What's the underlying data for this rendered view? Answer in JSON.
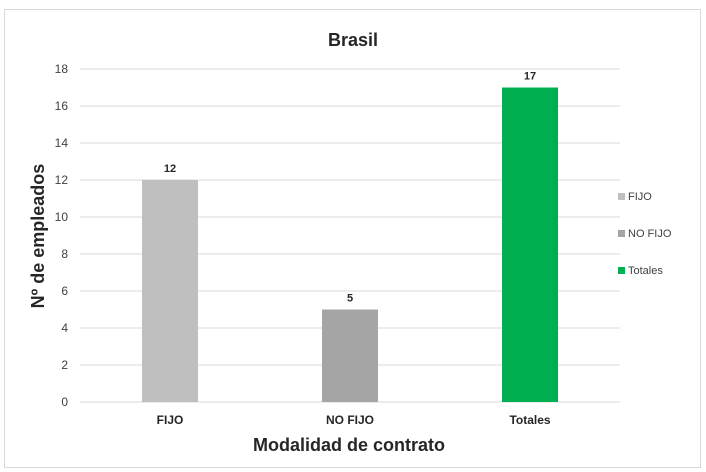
{
  "chart_data": {
    "type": "bar",
    "title": "Brasil",
    "xlabel": "Modalidad de contrato",
    "ylabel": "Nº de empleados",
    "categories": [
      "FIJO",
      "NO FIJO",
      "Totales"
    ],
    "values": [
      12,
      5,
      17
    ],
    "colors": [
      "#bfbfbf",
      "#a5a5a5",
      "#00b050"
    ],
    "ylim": [
      0,
      18
    ],
    "yticks": [
      0,
      2,
      4,
      6,
      8,
      10,
      12,
      14,
      16,
      18
    ],
    "grid": true,
    "legend": {
      "position": "right",
      "entries": [
        "FIJO",
        "NO FIJO",
        "Totales"
      ]
    },
    "data_labels": [
      "12",
      "5",
      "17"
    ]
  }
}
